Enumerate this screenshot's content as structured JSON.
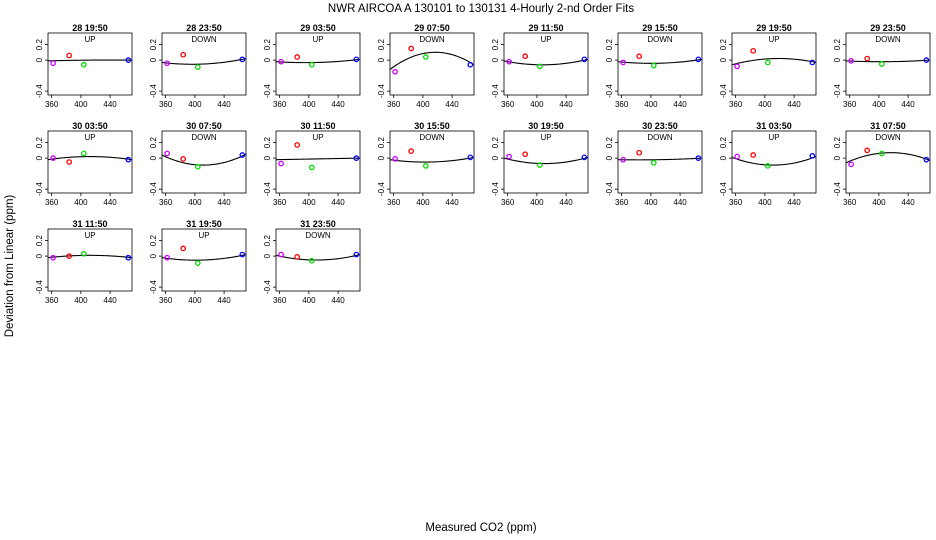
{
  "figure": {
    "title": "NWR   AIRCOA A   130101 to 130131   4-Hourly 2-nd Order Fits",
    "xlabel": "Measured CO2 (ppm)",
    "ylabel": "Deviation from Linear (ppm)"
  },
  "colors": {
    "s1": "#cc00ff",
    "s2": "#ff0000",
    "s3": "#00dd00",
    "s4": "#0000ff",
    "fit": "#000000"
  },
  "chart_data": [
    {
      "type": "scatter",
      "title": "28 19:50",
      "subtitle": "UP",
      "xlim": [
        355,
        470
      ],
      "ylim": [
        -0.45,
        0.35
      ],
      "xticks": [
        360,
        400,
        440
      ],
      "yticks": [
        -0.4,
        0,
        0.2
      ],
      "ytick_labels": [
        "-0.4",
        "0",
        "0.2"
      ],
      "x": [
        362,
        384,
        404,
        465
      ],
      "y": [
        -0.04,
        0.06,
        -0.06,
        0.0
      ],
      "fit": [
        -0.01,
        0.0,
        0.0
      ]
    },
    {
      "type": "scatter",
      "title": "28 23:50",
      "subtitle": "DOWN",
      "xlim": [
        355,
        470
      ],
      "ylim": [
        -0.45,
        0.35
      ],
      "xticks": [
        360,
        400,
        440
      ],
      "yticks": [
        -0.4,
        0,
        0.2
      ],
      "ytick_labels": [
        "-0.4",
        "0",
        "0.2"
      ],
      "x": [
        362,
        384,
        404,
        465
      ],
      "y": [
        -0.04,
        0.07,
        -0.09,
        0.01
      ],
      "fit": [
        -0.03,
        -0.05,
        0.02
      ]
    },
    {
      "type": "scatter",
      "title": "29 03:50",
      "subtitle": "UP",
      "xlim": [
        355,
        470
      ],
      "ylim": [
        -0.45,
        0.35
      ],
      "xticks": [
        360,
        400,
        440
      ],
      "yticks": [
        -0.4,
        0,
        0.2
      ],
      "ytick_labels": [
        "-0.4",
        "0",
        "0.2"
      ],
      "x": [
        362,
        384,
        404,
        465
      ],
      "y": [
        -0.02,
        0.04,
        -0.06,
        0.01
      ],
      "fit": [
        -0.02,
        -0.03,
        0.01
      ]
    },
    {
      "type": "scatter",
      "title": "29 07:50",
      "subtitle": "DOWN",
      "xlim": [
        355,
        470
      ],
      "ylim": [
        -0.45,
        0.35
      ],
      "xticks": [
        360,
        400,
        440
      ],
      "yticks": [
        -0.4,
        0,
        0.2
      ],
      "ytick_labels": [
        "-0.4",
        "0",
        "0.2"
      ],
      "x": [
        362,
        384,
        404,
        465
      ],
      "y": [
        -0.15,
        0.15,
        0.04,
        -0.06
      ],
      "fit": [
        -0.12,
        0.1,
        -0.06
      ]
    },
    {
      "type": "scatter",
      "title": "29 11:50",
      "subtitle": "UP",
      "xlim": [
        355,
        470
      ],
      "ylim": [
        -0.45,
        0.35
      ],
      "xticks": [
        360,
        400,
        440
      ],
      "yticks": [
        -0.4,
        0,
        0.2
      ],
      "ytick_labels": [
        "-0.4",
        "0",
        "0.2"
      ],
      "x": [
        362,
        384,
        404,
        465
      ],
      "y": [
        -0.02,
        0.05,
        -0.08,
        0.01
      ],
      "fit": [
        -0.01,
        -0.06,
        0.01
      ]
    },
    {
      "type": "scatter",
      "title": "29 15:50",
      "subtitle": "DOWN",
      "xlim": [
        355,
        470
      ],
      "ylim": [
        -0.45,
        0.35
      ],
      "xticks": [
        360,
        400,
        440
      ],
      "yticks": [
        -0.4,
        0,
        0.2
      ],
      "ytick_labels": [
        "-0.4",
        "0",
        "0.2"
      ],
      "x": [
        362,
        384,
        404,
        465
      ],
      "y": [
        -0.03,
        0.05,
        -0.07,
        0.01
      ],
      "fit": [
        -0.02,
        -0.04,
        0.01
      ]
    },
    {
      "type": "scatter",
      "title": "29 19:50",
      "subtitle": "UP",
      "xlim": [
        355,
        470
      ],
      "ylim": [
        -0.45,
        0.35
      ],
      "xticks": [
        360,
        400,
        440
      ],
      "yticks": [
        -0.4,
        0,
        0.2
      ],
      "ytick_labels": [
        "-0.4",
        "0",
        "0.2"
      ],
      "x": [
        362,
        384,
        404,
        465
      ],
      "y": [
        -0.08,
        0.12,
        -0.03,
        -0.03
      ],
      "fit": [
        -0.06,
        0.02,
        -0.03
      ]
    },
    {
      "type": "scatter",
      "title": "29 23:50",
      "subtitle": "DOWN",
      "xlim": [
        355,
        470
      ],
      "ylim": [
        -0.45,
        0.35
      ],
      "xticks": [
        360,
        400,
        440
      ],
      "yticks": [
        -0.4,
        0,
        0.2
      ],
      "ytick_labels": [
        "-0.4",
        "0",
        "0.2"
      ],
      "x": [
        362,
        384,
        404,
        465
      ],
      "y": [
        -0.01,
        0.02,
        -0.05,
        0.0
      ],
      "fit": [
        -0.01,
        -0.02,
        0.0
      ]
    },
    {
      "type": "scatter",
      "title": "30 03:50",
      "subtitle": "UP",
      "xlim": [
        355,
        470
      ],
      "ylim": [
        -0.45,
        0.35
      ],
      "xticks": [
        360,
        400,
        440
      ],
      "yticks": [
        -0.4,
        0,
        0.2
      ],
      "ytick_labels": [
        "-0.4",
        "0",
        "0.2"
      ],
      "x": [
        362,
        384,
        404,
        465
      ],
      "y": [
        0.0,
        -0.05,
        0.06,
        -0.02
      ],
      "fit": [
        -0.02,
        0.02,
        -0.02
      ]
    },
    {
      "type": "scatter",
      "title": "30 07:50",
      "subtitle": "DOWN",
      "xlim": [
        355,
        470
      ],
      "ylim": [
        -0.45,
        0.35
      ],
      "xticks": [
        360,
        400,
        440
      ],
      "yticks": [
        -0.4,
        0,
        0.2
      ],
      "ytick_labels": [
        "-0.4",
        "0",
        "0.2"
      ],
      "x": [
        362,
        384,
        404,
        465
      ],
      "y": [
        0.06,
        -0.01,
        -0.11,
        0.04
      ],
      "fit": [
        0.04,
        -0.09,
        0.05
      ]
    },
    {
      "type": "scatter",
      "title": "30 11:50",
      "subtitle": "UP",
      "xlim": [
        355,
        470
      ],
      "ylim": [
        -0.45,
        0.35
      ],
      "xticks": [
        360,
        400,
        440
      ],
      "yticks": [
        -0.4,
        0,
        0.2
      ],
      "ytick_labels": [
        "-0.4",
        "0",
        "0.2"
      ],
      "x": [
        362,
        384,
        404,
        465
      ],
      "y": [
        -0.07,
        0.17,
        -0.12,
        0.0
      ],
      "fit": [
        -0.02,
        -0.01,
        0.0
      ]
    },
    {
      "type": "scatter",
      "title": "30 15:50",
      "subtitle": "DOWN",
      "xlim": [
        355,
        470
      ],
      "ylim": [
        -0.45,
        0.35
      ],
      "xticks": [
        360,
        400,
        440
      ],
      "yticks": [
        -0.4,
        0,
        0.2
      ],
      "ytick_labels": [
        "-0.4",
        "0",
        "0.2"
      ],
      "x": [
        362,
        384,
        404,
        465
      ],
      "y": [
        -0.01,
        0.09,
        -0.1,
        0.01
      ],
      "fit": [
        -0.02,
        -0.05,
        0.01
      ]
    },
    {
      "type": "scatter",
      "title": "30 19:50",
      "subtitle": "UP",
      "xlim": [
        355,
        470
      ],
      "ylim": [
        -0.45,
        0.35
      ],
      "xticks": [
        360,
        400,
        440
      ],
      "yticks": [
        -0.4,
        0,
        0.2
      ],
      "ytick_labels": [
        "-0.4",
        "0",
        "0.2"
      ],
      "x": [
        362,
        384,
        404,
        465
      ],
      "y": [
        0.02,
        0.05,
        -0.09,
        0.01
      ],
      "fit": [
        0.0,
        -0.07,
        0.01
      ]
    },
    {
      "type": "scatter",
      "title": "30 23:50",
      "subtitle": "DOWN",
      "xlim": [
        355,
        470
      ],
      "ylim": [
        -0.45,
        0.35
      ],
      "xticks": [
        360,
        400,
        440
      ],
      "yticks": [
        -0.4,
        0,
        0.2
      ],
      "ytick_labels": [
        "-0.4",
        "0",
        "0.2"
      ],
      "x": [
        362,
        384,
        404,
        465
      ],
      "y": [
        -0.02,
        0.07,
        -0.06,
        0.0
      ],
      "fit": [
        -0.02,
        -0.02,
        0.0
      ]
    },
    {
      "type": "scatter",
      "title": "31 03:50",
      "subtitle": "UP",
      "xlim": [
        355,
        470
      ],
      "ylim": [
        -0.45,
        0.35
      ],
      "xticks": [
        360,
        400,
        440
      ],
      "yticks": [
        -0.4,
        0,
        0.2
      ],
      "ytick_labels": [
        "-0.4",
        "0",
        "0.2"
      ],
      "x": [
        362,
        384,
        404,
        465
      ],
      "y": [
        0.02,
        0.04,
        -0.1,
        0.03
      ],
      "fit": [
        0.01,
        -0.09,
        0.02
      ]
    },
    {
      "type": "scatter",
      "title": "31 07:50",
      "subtitle": "DOWN",
      "xlim": [
        355,
        470
      ],
      "ylim": [
        -0.45,
        0.35
      ],
      "xticks": [
        360,
        400,
        440
      ],
      "yticks": [
        -0.4,
        0,
        0.2
      ],
      "ytick_labels": [
        "-0.4",
        "0",
        "0.2"
      ],
      "x": [
        362,
        384,
        404,
        465
      ],
      "y": [
        -0.08,
        0.1,
        0.06,
        -0.02
      ],
      "fit": [
        -0.06,
        0.07,
        -0.03
      ]
    },
    {
      "type": "scatter",
      "title": "31 11:50",
      "subtitle": "UP",
      "xlim": [
        355,
        470
      ],
      "ylim": [
        -0.45,
        0.35
      ],
      "xticks": [
        360,
        400,
        440
      ],
      "yticks": [
        -0.4,
        0,
        0.2
      ],
      "ytick_labels": [
        "-0.4",
        "0",
        "0.2"
      ],
      "x": [
        362,
        384,
        404,
        465
      ],
      "y": [
        -0.02,
        0.0,
        0.03,
        -0.02
      ],
      "fit": [
        -0.02,
        0.01,
        -0.02
      ]
    },
    {
      "type": "scatter",
      "title": "31 19:50",
      "subtitle": "UP",
      "xlim": [
        355,
        470
      ],
      "ylim": [
        -0.45,
        0.35
      ],
      "xticks": [
        360,
        400,
        440
      ],
      "yticks": [
        -0.4,
        0,
        0.2
      ],
      "ytick_labels": [
        "-0.4",
        "0",
        "0.2"
      ],
      "x": [
        362,
        384,
        404,
        465
      ],
      "y": [
        -0.02,
        0.1,
        -0.09,
        0.02
      ],
      "fit": [
        -0.02,
        -0.05,
        0.02
      ]
    },
    {
      "type": "scatter",
      "title": "31 23:50",
      "subtitle": "DOWN",
      "xlim": [
        355,
        470
      ],
      "ylim": [
        -0.45,
        0.35
      ],
      "xticks": [
        360,
        400,
        440
      ],
      "yticks": [
        -0.4,
        0,
        0.2
      ],
      "ytick_labels": [
        "-0.4",
        "0",
        "0.2"
      ],
      "x": [
        362,
        384,
        404,
        465
      ],
      "y": [
        0.02,
        -0.01,
        -0.06,
        0.02
      ],
      "fit": [
        0.01,
        -0.05,
        0.02
      ]
    }
  ]
}
